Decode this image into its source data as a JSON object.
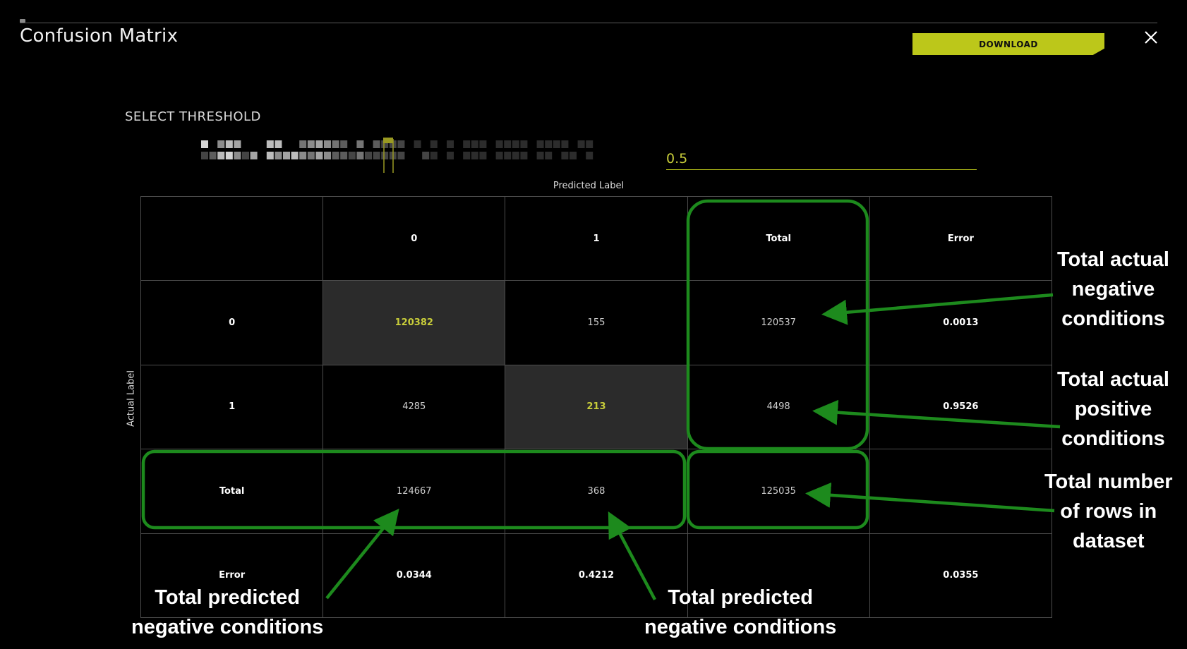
{
  "dialog": {
    "title": "Confusion Matrix",
    "download_label": "DOWNLOAD",
    "close_icon": "close-icon"
  },
  "threshold": {
    "label": "SELECT THRESHOLD",
    "value": "0.5"
  },
  "matrix": {
    "predicted_axis_label": "Predicted Label",
    "actual_axis_label": "Actual Label",
    "header": [
      "",
      "0",
      "1",
      "Total",
      "Error"
    ],
    "rows": [
      [
        "0",
        "120382",
        "155",
        "120537",
        "0.0013"
      ],
      [
        "1",
        "4285",
        "213",
        "4498",
        "0.9526"
      ],
      [
        "Total",
        "124667",
        "368",
        "125035",
        ""
      ],
      [
        "Error",
        "0.0344",
        "0.4212",
        "",
        "0.0355"
      ]
    ]
  },
  "annotations": {
    "total_actual_negative": "Total actual\nnegative\nconditions",
    "total_actual_positive": "Total actual\npositive\nconditions",
    "total_rows": "Total number\nof rows in\ndataset",
    "total_predicted_left": "Total predicted\nnegative conditions",
    "total_predicted_right": "Total predicted\nnegative conditions"
  },
  "colors": {
    "background": "#000000",
    "accent": "#bcc71a",
    "highlight_text": "#c8cd3a",
    "annotation_green": "#1d8a1d",
    "grid": "#4d4d4d"
  }
}
